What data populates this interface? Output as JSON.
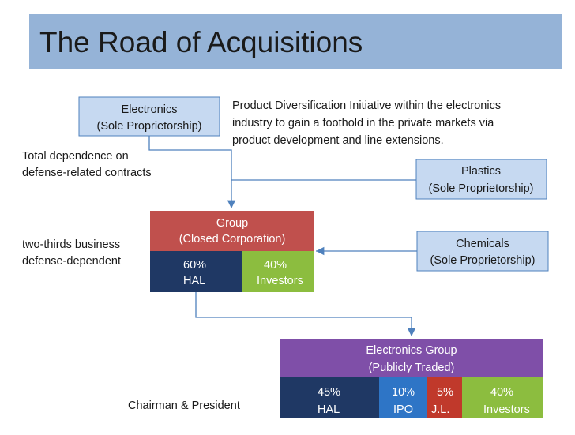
{
  "title": "The Road of Acquisitions",
  "annotations": {
    "diversification": [
      "Product Diversification Initiative within the electronics",
      "industry to gain a foothold in the private markets via",
      "product development and line extensions."
    ],
    "defense": [
      "Total dependence on",
      "defense-related contracts"
    ],
    "two_thirds": [
      "two-thirds business",
      "defense-dependent"
    ],
    "chairman": "Chairman & President"
  },
  "nodes": {
    "electronics": [
      "Electronics",
      "(Sole Proprietorship)"
    ],
    "plastics": [
      "Plastics",
      "(Sole Proprietorship)"
    ],
    "chemicals": [
      "Chemicals",
      "(Sole Proprietorship)"
    ],
    "group": {
      "label": [
        "Group",
        "(Closed Corporation)"
      ],
      "shares": [
        [
          "60%",
          "HAL"
        ],
        [
          "40%",
          "Investors"
        ]
      ]
    },
    "electronics_group": {
      "label": [
        "Electronics Group",
        "(Publicly Traded)"
      ],
      "shares": [
        [
          "45%",
          "HAL"
        ],
        [
          "10%",
          "IPO"
        ],
        [
          "5%",
          "J.L."
        ],
        [
          "40%",
          "Investors"
        ]
      ]
    }
  }
}
